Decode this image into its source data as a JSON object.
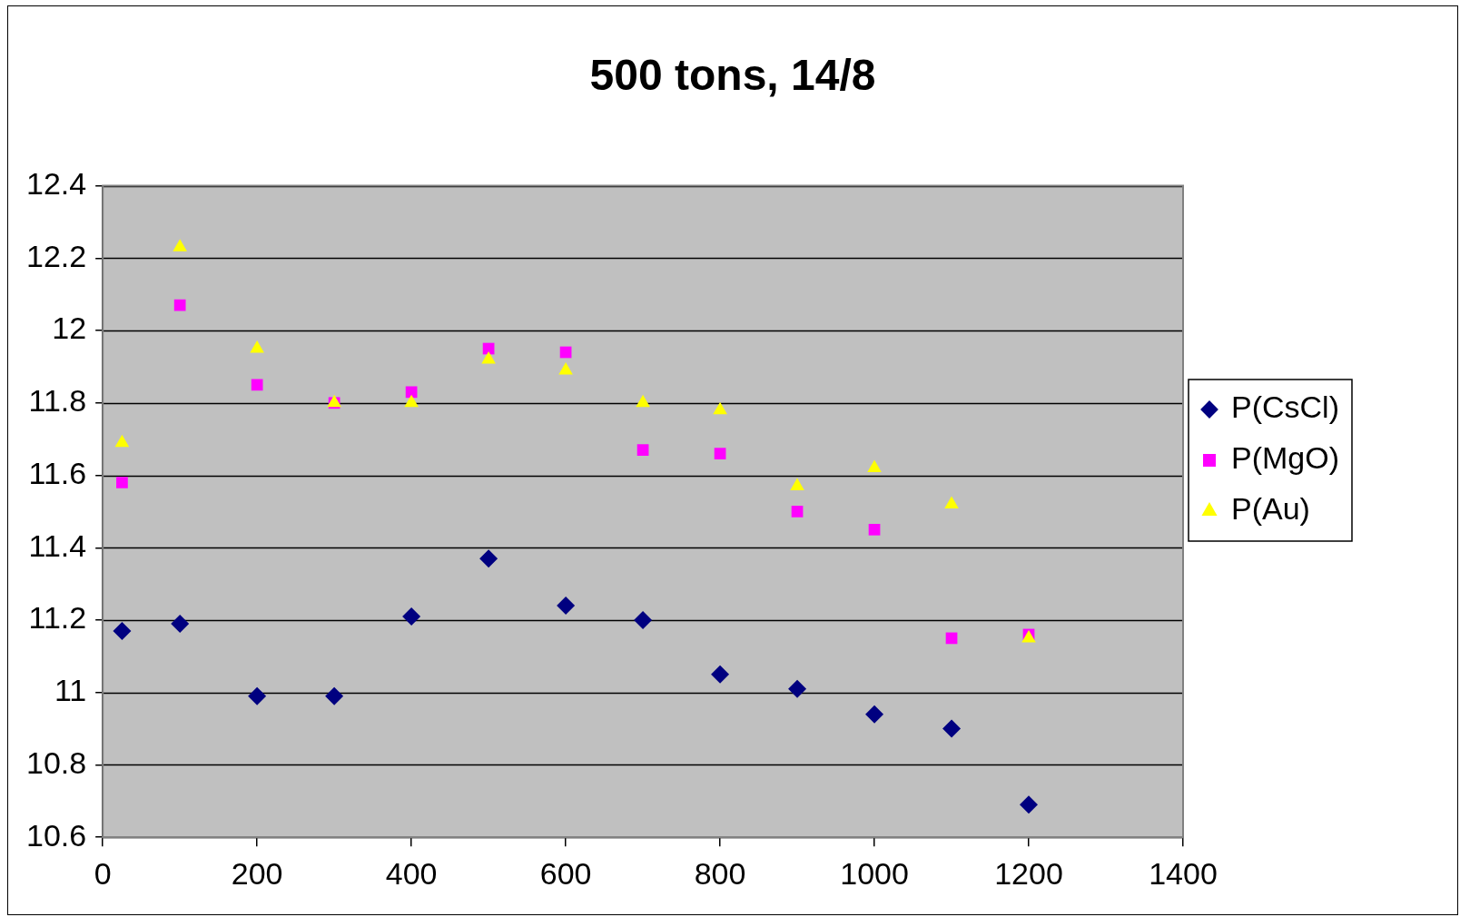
{
  "chart_data": {
    "type": "scatter",
    "title": "500 tons, 14/8",
    "xlim": [
      0,
      1400
    ],
    "xticks": [
      0,
      200,
      400,
      600,
      800,
      1000,
      1200,
      1400
    ],
    "ylim": [
      10.6,
      12.4
    ],
    "yticks": [
      10.6,
      10.8,
      11,
      11.2,
      11.4,
      11.6,
      11.8,
      12,
      12.2,
      12.4
    ],
    "grid": "y",
    "legend": "right",
    "x": [
      25,
      100,
      200,
      300,
      400,
      500,
      600,
      700,
      800,
      900,
      1000,
      1100,
      1200
    ],
    "series": [
      {
        "name": "P(CsCl)",
        "color": "#000080",
        "marker": "diamond",
        "values": [
          11.17,
          11.19,
          10.99,
          10.99,
          11.21,
          11.37,
          11.24,
          11.2,
          11.05,
          11.01,
          10.94,
          10.9,
          10.69
        ]
      },
      {
        "name": "P(MgO)",
        "color": "#ff00ff",
        "marker": "square",
        "values": [
          11.58,
          12.07,
          11.85,
          11.8,
          11.83,
          11.95,
          11.94,
          11.67,
          11.66,
          11.5,
          11.45,
          11.15,
          11.16
        ]
      },
      {
        "name": "P(Au)",
        "color": "#ffff00",
        "marker": "triangle",
        "values": [
          11.69,
          12.23,
          11.95,
          11.8,
          11.8,
          11.92,
          11.89,
          11.8,
          11.78,
          11.57,
          11.62,
          11.52,
          11.15
        ]
      }
    ]
  }
}
